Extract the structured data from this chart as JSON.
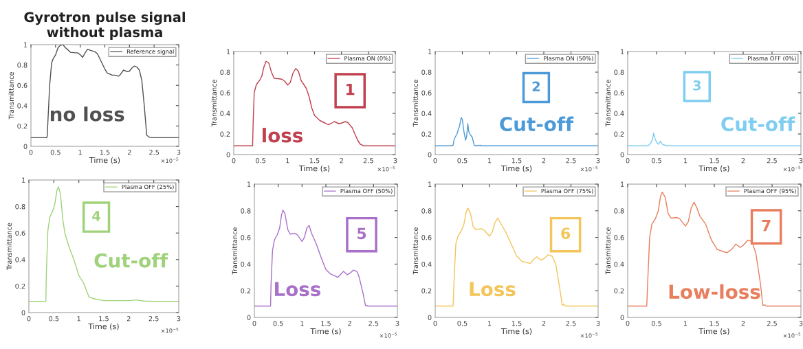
{
  "chart_data": [
    {
      "type": "line",
      "title": "Gyrotron pulse signal\nwithout plasma",
      "xlabel": "Time (s)",
      "ylabel": "Transmittance",
      "xlim": [
        0,
        3
      ],
      "ylim": [
        0,
        1
      ],
      "xticks": [
        0,
        0.5,
        1,
        1.5,
        2,
        2.5,
        3
      ],
      "yticks": [
        0,
        0.2,
        0.4,
        0.6,
        0.8,
        1
      ],
      "legend": "top right",
      "grid": false,
      "annotations": [
        "no loss",
        "×10$^{−5}$"
      ],
      "series": [
        {
          "name": "Reference signal",
          "color": "#505050",
          "x": [
            0,
            0.32,
            0.33,
            0.38,
            0.42,
            0.45,
            0.5,
            0.55,
            0.6,
            0.65,
            0.7,
            0.75,
            0.8,
            0.9,
            0.95,
            1.0,
            1.05,
            1.1,
            1.15,
            1.2,
            1.3,
            1.35,
            1.4,
            1.5,
            1.55,
            1.65,
            1.7,
            1.78,
            1.82,
            1.88,
            1.95,
            2.0,
            2.05,
            2.1,
            2.15,
            2.2,
            2.25,
            2.3,
            2.35,
            2.4,
            2.45,
            3
          ],
          "values": [
            0.085,
            0.085,
            0.1,
            0.6,
            0.82,
            0.86,
            0.9,
            0.97,
            0.995,
            1.0,
            0.97,
            0.95,
            0.925,
            0.92,
            0.92,
            0.9,
            0.875,
            0.92,
            0.955,
            0.945,
            0.93,
            0.91,
            0.86,
            0.76,
            0.72,
            0.7,
            0.7,
            0.69,
            0.71,
            0.75,
            0.735,
            0.74,
            0.77,
            0.79,
            0.78,
            0.75,
            0.65,
            0.4,
            0.11,
            0.09,
            0.085,
            0.085
          ]
        }
      ]
    },
    {
      "type": "line",
      "xlabel": "Time (s)",
      "ylabel": "Transmittance",
      "xlim": [
        0,
        3
      ],
      "ylim": [
        0,
        1
      ],
      "xticks": [
        0,
        0.5,
        1,
        1.5,
        2,
        2.5,
        3
      ],
      "yticks": [
        0,
        0.2,
        0.4,
        0.6,
        0.8,
        1
      ],
      "legend": "top right",
      "grid": false,
      "annotations": [
        "1",
        "loss",
        "×10$^{−5}$"
      ],
      "series": [
        {
          "name": "Plasma ON (0%)",
          "color": "#c0404e",
          "x": [
            0,
            0.35,
            0.36,
            0.38,
            0.42,
            0.48,
            0.52,
            0.56,
            0.6,
            0.65,
            0.7,
            0.75,
            0.85,
            0.9,
            0.95,
            1.0,
            1.05,
            1.1,
            1.15,
            1.2,
            1.25,
            1.35,
            1.4,
            1.45,
            1.5,
            1.6,
            1.7,
            1.75,
            1.8,
            1.87,
            1.95,
            2.0,
            2.07,
            2.12,
            2.2,
            2.3,
            2.35,
            2.38,
            2.4,
            3
          ],
          "values": [
            0.085,
            0.085,
            0.3,
            0.6,
            0.68,
            0.72,
            0.76,
            0.85,
            0.905,
            0.89,
            0.8,
            0.74,
            0.735,
            0.73,
            0.71,
            0.675,
            0.7,
            0.79,
            0.835,
            0.81,
            0.72,
            0.64,
            0.56,
            0.45,
            0.38,
            0.33,
            0.305,
            0.29,
            0.3,
            0.32,
            0.3,
            0.305,
            0.32,
            0.31,
            0.26,
            0.14,
            0.1,
            0.095,
            0.085,
            0.085
          ]
        }
      ]
    },
    {
      "type": "line",
      "xlabel": "Time (s)",
      "ylabel": "Transmittance",
      "xlim": [
        0,
        3
      ],
      "ylim": [
        0,
        1
      ],
      "xticks": [
        0,
        0.5,
        1,
        1.5,
        2,
        2.5,
        3
      ],
      "yticks": [
        0,
        0.2,
        0.4,
        0.6,
        0.8,
        1
      ],
      "legend": "top right",
      "grid": false,
      "annotations": [
        "2",
        "Cut-off",
        "×10$^{−5}$"
      ],
      "series": [
        {
          "name": "Plasma ON (50%)",
          "color": "#4d9ad8",
          "x": [
            0,
            0.3,
            0.33,
            0.35,
            0.4,
            0.45,
            0.48,
            0.5,
            0.53,
            0.56,
            0.58,
            0.6,
            0.62,
            0.65,
            0.68,
            0.72,
            0.75,
            0.83,
            0.86,
            3
          ],
          "values": [
            0.085,
            0.085,
            0.09,
            0.15,
            0.2,
            0.28,
            0.36,
            0.34,
            0.22,
            0.14,
            0.18,
            0.3,
            0.22,
            0.19,
            0.17,
            0.09,
            0.085,
            0.09,
            0.085,
            0.085
          ]
        }
      ]
    },
    {
      "type": "line",
      "xlabel": "Time (s)",
      "ylabel": "Transmittance",
      "xlim": [
        0,
        3
      ],
      "ylim": [
        0,
        1
      ],
      "xticks": [
        0,
        0.5,
        1,
        1.5,
        2,
        2.5,
        3
      ],
      "yticks": [
        0,
        0.2,
        0.4,
        0.6,
        0.8,
        1
      ],
      "legend": "top right",
      "grid": false,
      "annotations": [
        "3",
        "Cut-off",
        "×10$^{−5}$"
      ],
      "series": [
        {
          "name": "Plasma OFF (0%)",
          "color": "#7fcdf0",
          "x": [
            0,
            0.35,
            0.4,
            0.43,
            0.45,
            0.47,
            0.5,
            0.53,
            0.57,
            0.6,
            0.65,
            0.7,
            3
          ],
          "values": [
            0.085,
            0.085,
            0.11,
            0.15,
            0.21,
            0.16,
            0.12,
            0.1,
            0.13,
            0.1,
            0.09,
            0.085,
            0.085
          ]
        }
      ]
    },
    {
      "type": "line",
      "xlabel": "Time (s)",
      "ylabel": "Transmittance",
      "xlim": [
        0,
        3
      ],
      "ylim": [
        0,
        1
      ],
      "xticks": [
        0,
        0.5,
        1,
        1.5,
        2,
        2.5,
        3
      ],
      "yticks": [
        0,
        0.2,
        0.4,
        0.6,
        0.8,
        1
      ],
      "legend": "top right",
      "grid": false,
      "annotations": [
        "4",
        "Cut-off",
        "×10$^{−5}$"
      ],
      "series": [
        {
          "name": "Plasma OFF (25%)",
          "color": "#9fd27a",
          "x": [
            0,
            0.34,
            0.35,
            0.38,
            0.42,
            0.48,
            0.52,
            0.56,
            0.59,
            0.63,
            0.68,
            0.72,
            0.8,
            0.9,
            1.0,
            1.05,
            1.1,
            1.15,
            1.2,
            1.3,
            1.5,
            2.0,
            2.15,
            2.3,
            2.5,
            3
          ],
          "values": [
            0.085,
            0.085,
            0.3,
            0.62,
            0.72,
            0.77,
            0.82,
            0.92,
            0.95,
            0.9,
            0.7,
            0.6,
            0.5,
            0.4,
            0.28,
            0.25,
            0.22,
            0.17,
            0.12,
            0.105,
            0.09,
            0.09,
            0.095,
            0.087,
            0.085,
            0.085
          ]
        }
      ]
    },
    {
      "type": "line",
      "xlabel": "Time (s)",
      "ylabel": "Transmittance",
      "xlim": [
        0,
        3
      ],
      "ylim": [
        0,
        1
      ],
      "xticks": [
        0,
        0.5,
        1,
        1.5,
        2,
        2.5,
        3
      ],
      "yticks": [
        0,
        0.2,
        0.4,
        0.6,
        0.8,
        1
      ],
      "legend": "top right",
      "grid": false,
      "annotations": [
        "5",
        "Loss",
        "×10$^{−5}$"
      ],
      "series": [
        {
          "name": "Plasma OFF (50%)",
          "color": "#a870c8",
          "x": [
            0,
            0.34,
            0.35,
            0.38,
            0.42,
            0.48,
            0.53,
            0.57,
            0.6,
            0.64,
            0.7,
            0.75,
            0.85,
            0.9,
            1.0,
            1.05,
            1.1,
            1.15,
            1.2,
            1.3,
            1.4,
            1.5,
            1.6,
            1.7,
            1.75,
            1.8,
            1.87,
            1.95,
            2.0,
            2.08,
            2.15,
            2.2,
            2.28,
            2.33,
            2.4,
            3
          ],
          "values": [
            0.085,
            0.085,
            0.25,
            0.5,
            0.58,
            0.62,
            0.67,
            0.77,
            0.805,
            0.78,
            0.66,
            0.625,
            0.63,
            0.62,
            0.57,
            0.6,
            0.67,
            0.69,
            0.63,
            0.55,
            0.45,
            0.36,
            0.325,
            0.31,
            0.3,
            0.32,
            0.345,
            0.32,
            0.33,
            0.355,
            0.345,
            0.3,
            0.18,
            0.09,
            0.085,
            0.085
          ]
        }
      ]
    },
    {
      "type": "line",
      "xlabel": "Time (s)",
      "ylabel": "Transmittance",
      "xlim": [
        0,
        3
      ],
      "ylim": [
        0,
        1
      ],
      "xticks": [
        0,
        0.5,
        1,
        1.5,
        2,
        2.5,
        3
      ],
      "yticks": [
        0,
        0.2,
        0.4,
        0.6,
        0.8,
        1
      ],
      "legend": "top right",
      "grid": false,
      "annotations": [
        "6",
        "Loss",
        "×10$^{−5}$"
      ],
      "series": [
        {
          "name": "Plasma OFF (75%)",
          "color": "#f3c55a",
          "x": [
            0,
            0.33,
            0.35,
            0.38,
            0.42,
            0.48,
            0.53,
            0.57,
            0.6,
            0.65,
            0.7,
            0.75,
            0.85,
            0.9,
            1.0,
            1.05,
            1.1,
            1.15,
            1.2,
            1.3,
            1.4,
            1.5,
            1.6,
            1.7,
            1.75,
            1.8,
            1.87,
            1.95,
            2.0,
            2.08,
            2.15,
            2.22,
            2.3,
            2.34,
            2.37,
            2.4,
            3
          ],
          "values": [
            0.085,
            0.085,
            0.3,
            0.55,
            0.61,
            0.65,
            0.7,
            0.79,
            0.82,
            0.78,
            0.68,
            0.66,
            0.665,
            0.655,
            0.61,
            0.64,
            0.71,
            0.745,
            0.71,
            0.64,
            0.55,
            0.46,
            0.42,
            0.41,
            0.405,
            0.43,
            0.455,
            0.43,
            0.44,
            0.47,
            0.46,
            0.4,
            0.2,
            0.09,
            0.1,
            0.085,
            0.085
          ]
        }
      ]
    },
    {
      "type": "line",
      "xlabel": "Time (s)",
      "ylabel": "Transmittance",
      "xlim": [
        0,
        3
      ],
      "ylim": [
        0,
        1
      ],
      "xticks": [
        0,
        0.5,
        1,
        1.5,
        2,
        2.5,
        3
      ],
      "yticks": [
        0,
        0.2,
        0.4,
        0.6,
        0.8,
        1
      ],
      "legend": "top right",
      "grid": false,
      "annotations": [
        "7",
        "Low-loss",
        "×10$^{−5}$"
      ],
      "series": [
        {
          "name": "Plasma OFF (95%)",
          "color": "#e87e5e",
          "x": [
            0,
            0.33,
            0.35,
            0.38,
            0.42,
            0.48,
            0.53,
            0.57,
            0.6,
            0.65,
            0.7,
            0.75,
            0.85,
            0.9,
            1.0,
            1.05,
            1.1,
            1.15,
            1.2,
            1.25,
            1.35,
            1.45,
            1.55,
            1.65,
            1.72,
            1.8,
            1.87,
            1.95,
            2.0,
            2.08,
            2.15,
            2.22,
            2.3,
            2.34,
            2.37,
            2.4,
            3
          ],
          "values": [
            0.085,
            0.085,
            0.3,
            0.6,
            0.7,
            0.74,
            0.8,
            0.91,
            0.94,
            0.9,
            0.78,
            0.745,
            0.75,
            0.74,
            0.685,
            0.72,
            0.82,
            0.865,
            0.82,
            0.76,
            0.7,
            0.58,
            0.51,
            0.495,
            0.485,
            0.51,
            0.55,
            0.525,
            0.54,
            0.58,
            0.57,
            0.48,
            0.25,
            0.09,
            0.095,
            0.085,
            0.085
          ]
        }
      ]
    }
  ]
}
